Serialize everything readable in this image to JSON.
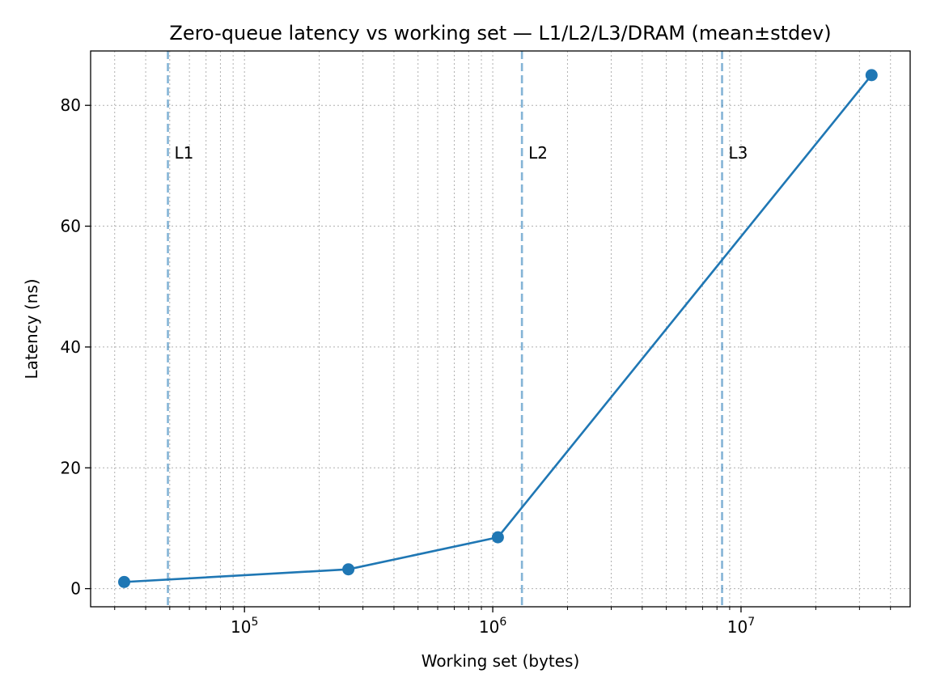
{
  "chart_data": {
    "type": "line",
    "title": "Zero-queue latency vs working set — L1/L2/L3/DRAM (mean±stdev)",
    "xlabel": "Working set (bytes)",
    "ylabel": "Latency (ns)",
    "xscale": "log",
    "xlim": [
      24000,
      48000000
    ],
    "ylim": [
      -3,
      89
    ],
    "grid": true,
    "legend": "none",
    "x_ticks": [
      {
        "value": 100000,
        "base": "10",
        "exp": "5"
      },
      {
        "value": 1000000,
        "base": "10",
        "exp": "6"
      },
      {
        "value": 10000000,
        "base": "10",
        "exp": "7"
      }
    ],
    "y_ticks": [
      0,
      20,
      40,
      60,
      80
    ],
    "series": [
      {
        "color": "#1f77b4",
        "points": [
          {
            "x": 32768,
            "y": 1.1
          },
          {
            "x": 262144,
            "y": 3.2
          },
          {
            "x": 1048576,
            "y": 8.5
          },
          {
            "x": 33554432,
            "y": 85
          }
        ]
      }
    ],
    "reference_lines": [
      {
        "label": "L1",
        "x": 49152,
        "color": "#1f77b4"
      },
      {
        "label": "L2",
        "x": 1310720,
        "color": "#1f77b4"
      },
      {
        "label": "L3",
        "x": 8388608,
        "color": "#1f77b4"
      }
    ],
    "reference_label_y": 72
  }
}
